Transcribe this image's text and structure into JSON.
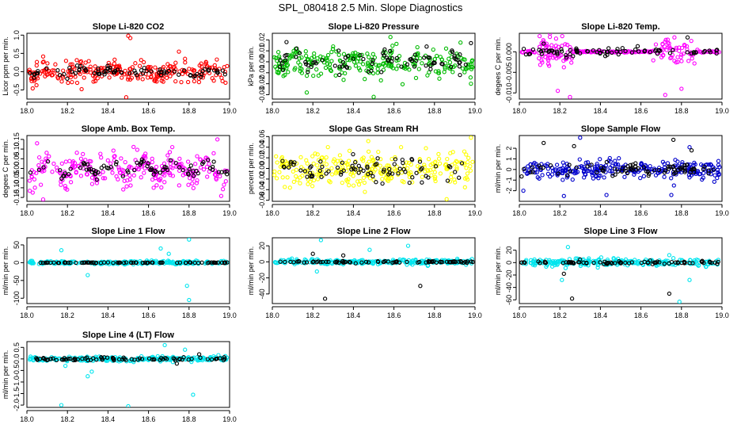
{
  "figure": {
    "title": "SPL_080418  2.5 Min. Slope Diagnostics"
  },
  "chart_data": [
    {
      "type": "scatter",
      "title": "Slope Li-820 CO2",
      "ylabel": "Licor ppm per min.",
      "xlim": [
        18.0,
        19.0
      ],
      "ylim": [
        -0.75,
        1.05
      ],
      "x_ticks": [
        "18.0",
        "18.2",
        "18.4",
        "18.6",
        "18.8",
        "19.0"
      ],
      "y_ticks": [
        "-0.5",
        "0.0",
        "0.5",
        "1.0"
      ],
      "y_tick_values": [
        -0.5,
        0.0,
        0.5,
        1.0
      ],
      "series": [
        {
          "color": "#ff0000",
          "spread": 0.28,
          "amp": 0.1,
          "outliers": [
            [
              18.5,
              0.98
            ],
            [
              18.51,
              0.92
            ],
            [
              18.49,
              -0.7
            ],
            [
              18.75,
              0.55
            ],
            [
              18.27,
              -0.48
            ]
          ]
        },
        {
          "color": "#000000",
          "spread": 0.12,
          "amp": 0.05,
          "outliers": []
        }
      ]
    },
    {
      "type": "scatter",
      "title": "Slope Li-820 Pressure",
      "ylabel": "kPa per min.",
      "xlim": [
        18.0,
        19.0
      ],
      "ylim": [
        -0.034,
        0.026
      ],
      "x_ticks": [
        "18.0",
        "18.2",
        "18.4",
        "18.6",
        "18.8",
        "19.0"
      ],
      "y_ticks": [
        "-0.03",
        "-0.02",
        "-0.01",
        "0.00",
        "0.01",
        "0.02"
      ],
      "y_tick_values": [
        -0.03,
        -0.02,
        -0.01,
        0.0,
        0.01,
        0.02
      ],
      "series": [
        {
          "color": "#00bb00",
          "spread": 0.012,
          "amp": 0.002,
          "outliers": [
            [
              18.5,
              -0.032
            ],
            [
              18.17,
              -0.028
            ],
            [
              18.98,
              -0.02
            ],
            [
              18.3,
              0.014
            ]
          ]
        },
        {
          "color": "#000000",
          "spread": 0.009,
          "amp": 0.003,
          "outliers": [
            [
              18.07,
              0.018
            ],
            [
              18.98,
              0.017
            ]
          ]
        }
      ]
    },
    {
      "type": "scatter",
      "title": "Slope Li-820 Temp.",
      "ylabel": "degees C per min.",
      "xlim": [
        18.0,
        19.0
      ],
      "ylim": [
        -0.0115,
        0.0045
      ],
      "x_ticks": [
        "18.0",
        "18.2",
        "18.4",
        "18.6",
        "18.8",
        "19.0"
      ],
      "y_ticks": [
        "-0.010",
        "-0.005",
        "0.000"
      ],
      "y_tick_values": [
        -0.01,
        -0.005,
        0.0
      ],
      "series": [
        {
          "color": "#ff00ff",
          "spread": 0.0035,
          "amp": 0.0,
          "outliers": [
            [
              18.1,
              0.0038
            ],
            [
              18.25,
              -0.011
            ],
            [
              18.72,
              -0.0105
            ],
            [
              18.8,
              -0.009
            ],
            [
              18.19,
              -0.0095
            ]
          ],
          "burst": [
            [
              18.08,
              18.26
            ],
            [
              18.66,
              18.88
            ]
          ]
        },
        {
          "color": "#000000",
          "spread": 0.0008,
          "amp": 0.0,
          "outliers": [
            [
              18.12,
              0.002
            ],
            [
              18.83,
              0.0035
            ]
          ]
        }
      ]
    },
    {
      "type": "scatter",
      "title": "Slope Amb. Box Temp.",
      "ylabel": "degees C per min.",
      "xlim": [
        18.0,
        19.0
      ],
      "ylim": [
        -0.17,
        0.17
      ],
      "x_ticks": [
        "18.0",
        "18.2",
        "18.4",
        "18.6",
        "18.8",
        "19.0"
      ],
      "y_ticks": [
        "-0.15",
        "-0.10",
        "-0.05",
        "0.00",
        "0.05",
        "0.10",
        "0.15"
      ],
      "y_tick_values": [
        -0.15,
        -0.1,
        -0.05,
        0.0,
        0.05,
        0.1,
        0.15
      ],
      "series": [
        {
          "color": "#ff00ff",
          "spread": 0.07,
          "amp": 0.03,
          "outliers": [
            [
              18.05,
              0.13
            ],
            [
              18.94,
              0.15
            ],
            [
              18.08,
              -0.16
            ]
          ]
        },
        {
          "color": "#000000",
          "spread": 0.03,
          "amp": 0.02,
          "outliers": []
        }
      ]
    },
    {
      "type": "scatter",
      "title": "Slope Gas Stream RH",
      "ylabel": "percent per min.",
      "xlim": [
        18.0,
        19.0
      ],
      "ylim": [
        -0.062,
        0.062
      ],
      "x_ticks": [
        "18.0",
        "18.2",
        "18.4",
        "18.6",
        "18.8",
        "19.0"
      ],
      "y_ticks": [
        "-0.06",
        "-0.04",
        "-0.02",
        "0.00",
        "0.02",
        "0.04",
        "0.06"
      ],
      "y_tick_values": [
        -0.06,
        -0.04,
        -0.02,
        0.0,
        0.02,
        0.04,
        0.06
      ],
      "series": [
        {
          "color": "#ffff00",
          "spread": 0.03,
          "amp": 0.0,
          "outliers": [
            [
              18.86,
              -0.058
            ],
            [
              18.98,
              0.058
            ]
          ]
        },
        {
          "color": "#000000",
          "spread": 0.022,
          "amp": 0.0,
          "outliers": []
        }
      ]
    },
    {
      "type": "scatter",
      "title": "Slope Sample Flow",
      "ylabel": "ml/min per min.",
      "xlim": [
        18.0,
        19.0
      ],
      "ylim": [
        -3.0,
        3.2
      ],
      "x_ticks": [
        "18.0",
        "18.2",
        "18.4",
        "18.6",
        "18.8",
        "19.0"
      ],
      "y_ticks": [
        "-2",
        "-1",
        "0",
        "1",
        "2"
      ],
      "y_tick_values": [
        -2,
        -1,
        0,
        1,
        2
      ],
      "series": [
        {
          "color": "#0000cc",
          "spread": 0.8,
          "amp": 0.0,
          "outliers": [
            [
              18.3,
              3.0
            ],
            [
              18.75,
              -2.4
            ],
            [
              18.22,
              -2.5
            ],
            [
              18.02,
              -2.0
            ],
            [
              18.43,
              -2.4
            ],
            [
              18.84,
              2.1
            ]
          ]
        },
        {
          "color": "#000000",
          "spread": 0.5,
          "amp": 0.0,
          "outliers": [
            [
              18.12,
              2.5
            ],
            [
              18.27,
              2.2
            ],
            [
              18.76,
              2.8
            ],
            [
              18.85,
              1.8
            ]
          ]
        }
      ]
    },
    {
      "type": "scatter",
      "title": "Slope Line 1 Flow",
      "ylabel": "ml/min per min.",
      "xlim": [
        18.0,
        19.0
      ],
      "ylim": [
        -115,
        70
      ],
      "x_ticks": [
        "18.0",
        "18.2",
        "18.4",
        "18.6",
        "18.8",
        "19.0"
      ],
      "y_ticks": [
        "-100",
        "-50",
        "0",
        "50"
      ],
      "y_tick_values": [
        -100,
        -50,
        0,
        50
      ],
      "series": [
        {
          "color": "#00e5ee",
          "spread": 4,
          "amp": 0.0,
          "outliers": [
            [
              18.8,
              65
            ],
            [
              18.8,
              -105
            ],
            [
              18.79,
              -65
            ],
            [
              18.3,
              -35
            ],
            [
              18.17,
              35
            ],
            [
              18.66,
              40
            ],
            [
              18.7,
              25
            ]
          ]
        },
        {
          "color": "#000000",
          "spread": 1,
          "amp": 0.0,
          "outliers": []
        }
      ]
    },
    {
      "type": "scatter",
      "title": "Slope Line 2 Flow",
      "ylabel": "ml/min per min.",
      "xlim": [
        18.0,
        19.0
      ],
      "ylim": [
        -52,
        30
      ],
      "x_ticks": [
        "18.0",
        "18.2",
        "18.4",
        "18.6",
        "18.8",
        "19.0"
      ],
      "y_ticks": [
        "-40",
        "-20",
        "0",
        "20"
      ],
      "y_tick_values": [
        -40,
        -20,
        0,
        20
      ],
      "series": [
        {
          "color": "#00e5ee",
          "spread": 3,
          "amp": 0.0,
          "outliers": [
            [
              18.24,
              27
            ],
            [
              18.67,
              20
            ],
            [
              18.48,
              15
            ],
            [
              18.22,
              -12
            ]
          ]
        },
        {
          "color": "#000000",
          "spread": 1.2,
          "amp": 0.0,
          "outliers": [
            [
              18.26,
              -46
            ],
            [
              18.73,
              -30
            ],
            [
              18.2,
              10
            ],
            [
              18.35,
              8
            ]
          ]
        }
      ]
    },
    {
      "type": "scatter",
      "title": "Slope Line 3 Flow",
      "ylabel": "ml/min per min.",
      "xlim": [
        18.0,
        19.0
      ],
      "ylim": [
        -66,
        40
      ],
      "x_ticks": [
        "18.0",
        "18.2",
        "18.4",
        "18.6",
        "18.8",
        "19.0"
      ],
      "y_ticks": [
        "-60",
        "-40",
        "-20",
        "0",
        "20"
      ],
      "y_tick_values": [
        -60,
        -40,
        -20,
        0,
        20
      ],
      "series": [
        {
          "color": "#00e5ee",
          "spread": 5,
          "amp": 0.0,
          "outliers": [
            [
              18.24,
              25
            ],
            [
              18.79,
              -63
            ],
            [
              18.21,
              -28
            ],
            [
              18.74,
              12
            ],
            [
              18.84,
              -28
            ]
          ]
        },
        {
          "color": "#000000",
          "spread": 2,
          "amp": 0.0,
          "outliers": [
            [
              18.26,
              -58
            ],
            [
              18.74,
              -50
            ],
            [
              18.3,
              5
            ],
            [
              18.22,
              -18
            ]
          ]
        }
      ]
    },
    {
      "type": "scatter",
      "title": "Slope Line 4 (LT) Flow",
      "ylabel": "ml/min per min.",
      "xlim": [
        18.0,
        19.0
      ],
      "ylim": [
        -2.1,
        0.75
      ],
      "x_ticks": [
        "18.0",
        "18.2",
        "18.4",
        "18.6",
        "18.8",
        "19.0"
      ],
      "y_ticks": [
        "-2.0",
        "-1.5",
        "-1.0",
        "-0.5",
        "0.0",
        "0.5"
      ],
      "y_tick_values": [
        -2.0,
        -1.5,
        -1.0,
        -0.5,
        0.0,
        0.5
      ],
      "series": [
        {
          "color": "#00e5ee",
          "spread": 0.1,
          "amp": 0.0,
          "outliers": [
            [
              18.17,
              -2.0
            ],
            [
              18.5,
              -2.05
            ],
            [
              18.82,
              -1.55
            ],
            [
              18.3,
              -0.75
            ],
            [
              18.32,
              -0.55
            ],
            [
              18.19,
              -0.3
            ],
            [
              18.68,
              0.6
            ],
            [
              18.78,
              0.4
            ]
          ]
        },
        {
          "color": "#000000",
          "spread": 0.07,
          "amp": 0.0,
          "outliers": [
            [
              18.85,
              0.2
            ],
            [
              18.74,
              -0.2
            ]
          ]
        }
      ]
    }
  ]
}
